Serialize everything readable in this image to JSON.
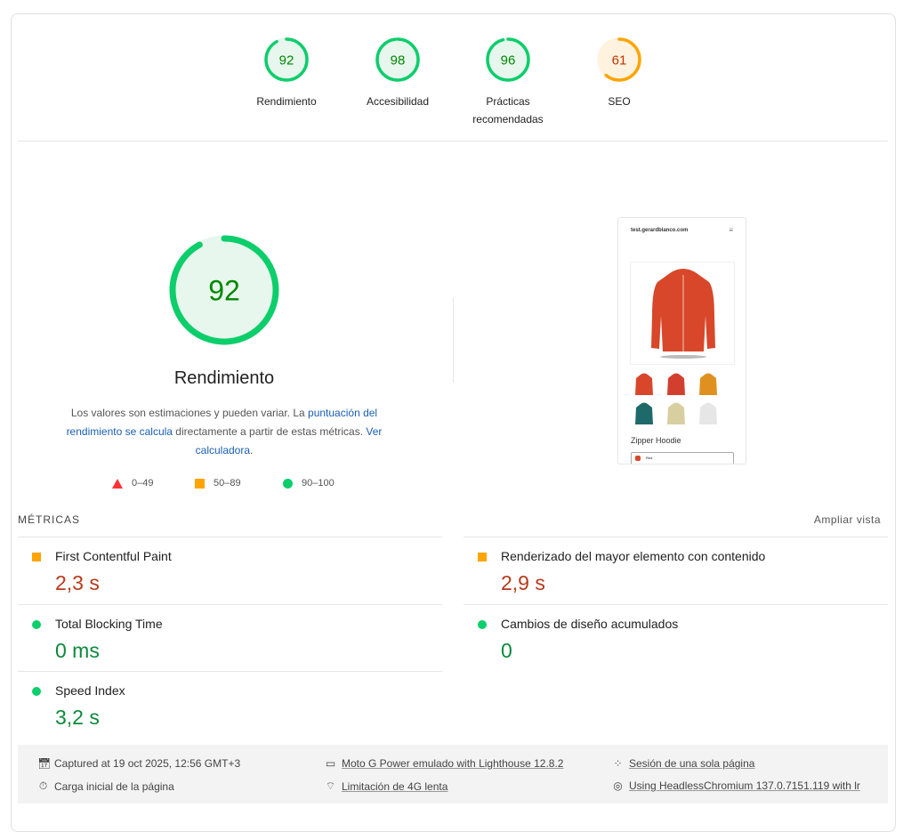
{
  "categories": [
    {
      "label": "Rendimiento",
      "score": 92,
      "status": "pass"
    },
    {
      "label": "Accesibilidad",
      "score": 98,
      "status": "pass"
    },
    {
      "label": "Prácticas recomendadas",
      "score": 96,
      "status": "pass"
    },
    {
      "label": "SEO",
      "score": 61,
      "status": "average"
    }
  ],
  "colors": {
    "pass": "#0cce6b",
    "pass_text": "#008800",
    "pass_bg": "#e8f7ee",
    "average": "#ffa400",
    "average_text": "#c33300",
    "average_bg": "#fff3e0",
    "fail": "#ff3333"
  },
  "main": {
    "score": 92,
    "title": "Rendimiento",
    "desc_1": "Los valores son estimaciones y pueden variar. La ",
    "desc_link_1": "puntuación del rendimiento se calcula",
    "desc_2": " directamente a partir de estas métricas. ",
    "desc_link_2": "Ver calculadora",
    "desc_3": ".",
    "legend": [
      {
        "range": "0–49",
        "icon": "triangle"
      },
      {
        "range": "50–89",
        "icon": "square"
      },
      {
        "range": "90–100",
        "icon": "circle"
      }
    ]
  },
  "preview": {
    "site": "test.gerardblanco.com",
    "product": "Zipper Hoodie",
    "option": "Red",
    "swatches": [
      "#d8472a",
      "#d23f2f",
      "#e0901e",
      "#1e6a6a",
      "#d8cfa0",
      "#e6e6e6"
    ]
  },
  "metrics": {
    "header": "MÉTRICAS",
    "expand": "Ampliar vista",
    "items": [
      {
        "name": "First Contentful Paint",
        "value": "2,3 s",
        "status": "average"
      },
      {
        "name": "Renderizado del mayor elemento con contenido",
        "value": "2,9 s",
        "status": "average"
      },
      {
        "name": "Total Blocking Time",
        "value": "0 ms",
        "status": "pass"
      },
      {
        "name": "Cambios de diseño acumulados",
        "value": "0",
        "status": "pass"
      },
      {
        "name": "Speed Index",
        "value": "3,2 s",
        "status": "pass"
      }
    ]
  },
  "footer": {
    "captured": "Captured at 19 oct 2025, 12:56 GMT+3",
    "load": "Carga inicial de la página",
    "device": "Moto G Power emulado with Lighthouse 12.8.2",
    "throttle": "Limitación de 4G lenta",
    "session": "Sesión de una sola página",
    "browser": "Using HeadlessChromium 137.0.7151.119 with lr"
  }
}
